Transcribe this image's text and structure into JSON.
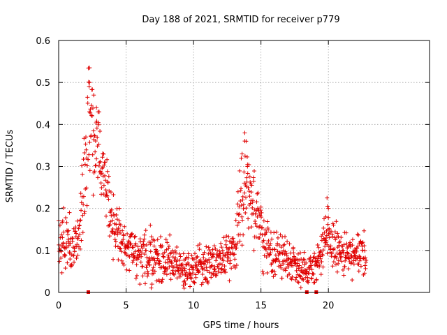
{
  "chart_data": {
    "type": "scatter",
    "title": "Day 188 of 2021, SRMTID for receiver p779",
    "xlabel": "GPS time / hours",
    "ylabel": "SRMTID / TECUs",
    "xlim": [
      0,
      27.5
    ],
    "ylim": [
      0,
      0.6
    ],
    "xticks": [
      "0",
      "5",
      "10",
      "15",
      "20"
    ],
    "yticks": [
      "0",
      "0.1",
      "0.2",
      "0.3",
      "0.4",
      "0.5",
      "0.6"
    ],
    "grid": true,
    "color": "#e00000",
    "marker": "+",
    "envelope": [
      [
        0.0,
        0.12,
        0.05
      ],
      [
        0.5,
        0.13,
        0.05
      ],
      [
        1.0,
        0.09,
        0.04
      ],
      [
        1.5,
        0.14,
        0.04
      ],
      [
        2.0,
        0.3,
        0.1
      ],
      [
        2.3,
        0.42,
        0.1
      ],
      [
        3.0,
        0.33,
        0.08
      ],
      [
        3.5,
        0.27,
        0.07
      ],
      [
        4.0,
        0.16,
        0.05
      ],
      [
        5.0,
        0.1,
        0.04
      ],
      [
        6.0,
        0.08,
        0.04
      ],
      [
        8.0,
        0.08,
        0.04
      ],
      [
        9.3,
        0.05,
        0.03
      ],
      [
        10.0,
        0.06,
        0.03
      ],
      [
        12.0,
        0.08,
        0.035
      ],
      [
        13.0,
        0.1,
        0.04
      ],
      [
        13.5,
        0.22,
        0.07
      ],
      [
        14.0,
        0.27,
        0.07
      ],
      [
        14.6,
        0.18,
        0.06
      ],
      [
        15.5,
        0.1,
        0.04
      ],
      [
        17.0,
        0.08,
        0.035
      ],
      [
        18.5,
        0.05,
        0.025
      ],
      [
        19.5,
        0.09,
        0.04
      ],
      [
        20.0,
        0.13,
        0.05
      ],
      [
        21.0,
        0.09,
        0.035
      ],
      [
        22.0,
        0.08,
        0.035
      ],
      [
        22.8,
        0.1,
        0.04
      ]
    ],
    "sample_points": [
      [
        2.3,
        0.535
      ],
      [
        2.3,
        0.5
      ],
      [
        2.6,
        0.47
      ],
      [
        2.8,
        0.44
      ],
      [
        3.0,
        0.43
      ],
      [
        13.8,
        0.38
      ],
      [
        13.9,
        0.36
      ],
      [
        13.6,
        0.33
      ],
      [
        14.0,
        0.3
      ],
      [
        19.9,
        0.225
      ],
      [
        20.0,
        0.2
      ],
      [
        19.8,
        0.18
      ],
      [
        9.3,
        0.01
      ],
      [
        9.4,
        0.02
      ],
      [
        0.3,
        0.17
      ],
      [
        0.8,
        0.19
      ],
      [
        4.5,
        0.2
      ],
      [
        6.8,
        0.16
      ]
    ],
    "zero_markers": [
      2.2,
      18.4,
      19.1
    ]
  }
}
